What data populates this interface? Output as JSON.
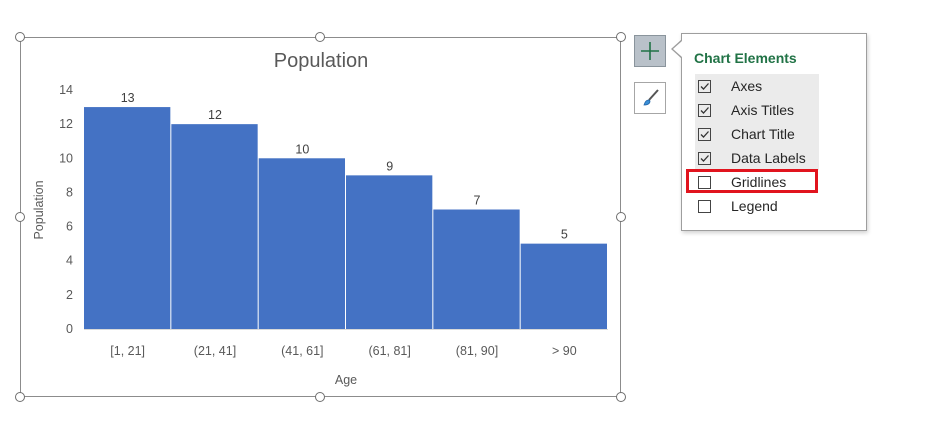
{
  "chart_data": {
    "type": "bar",
    "title": "Population",
    "xlabel": "Age",
    "ylabel": "Population",
    "categories": [
      "[1, 21]",
      "(21, 41]",
      "(41, 61]",
      "(61, 81]",
      "(81, 90]",
      "> 90"
    ],
    "values": [
      13,
      12,
      10,
      9,
      7,
      5
    ],
    "ylim": [
      0,
      14
    ],
    "yticks": [
      "0",
      "2",
      "4",
      "6",
      "8",
      "10",
      "12",
      "14"
    ],
    "data_labels": true,
    "grid": false,
    "legend": false,
    "bar_color": "#4472c4"
  },
  "panel": {
    "title": "Chart Elements",
    "items": [
      {
        "label": "Axes",
        "checked": true
      },
      {
        "label": "Axis Titles",
        "checked": true
      },
      {
        "label": "Chart Title",
        "checked": true
      },
      {
        "label": "Data Labels",
        "checked": true
      },
      {
        "label": "Gridlines",
        "checked": false
      },
      {
        "label": "Legend",
        "checked": false
      }
    ]
  },
  "buttons": {
    "chart_elements_icon": "plus-icon",
    "chart_styles_icon": "paintbrush-icon"
  },
  "colors": {
    "accent_green": "#217346",
    "highlight_red": "#e1141e"
  }
}
